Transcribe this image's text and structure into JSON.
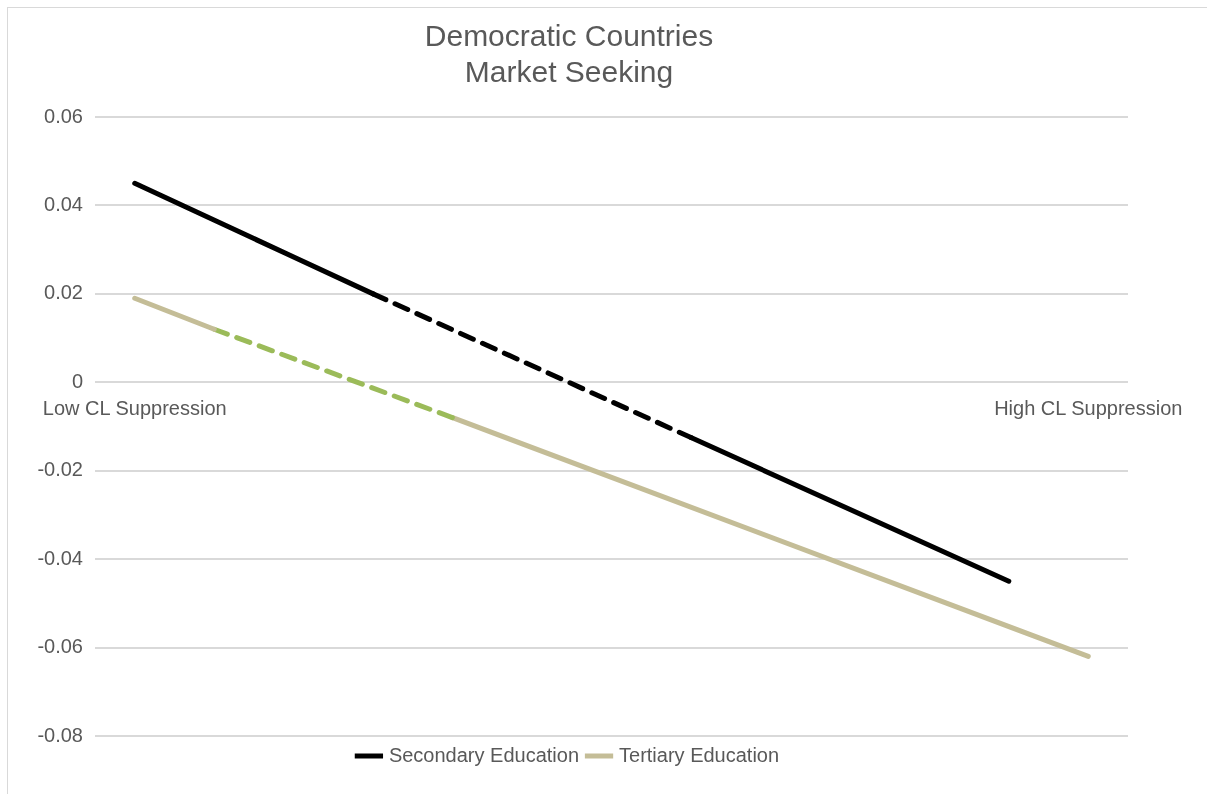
{
  "chart_data": {
    "type": "line",
    "title": "Democratic Countries",
    "subtitle": "Market Seeking",
    "categories": [
      "Low CL Suppression",
      null,
      null,
      null,
      null,
      null,
      null,
      null,
      null,
      null,
      null,
      null,
      "High CL Suppression"
    ],
    "series": [
      {
        "name": "Secondary Education",
        "color": "#000000",
        "values": [
          0.045,
          null,
          null,
          0.02,
          null,
          null,
          null,
          null,
          null,
          null,
          null,
          null,
          null
        ]
      },
      {
        "color": "#000000",
        "line_style": "dashed",
        "values": [
          null,
          null,
          null,
          0.02,
          null,
          null,
          null,
          -0.0125,
          null,
          null,
          null,
          null,
          null
        ]
      },
      {
        "color": "#000000",
        "values": [
          null,
          null,
          null,
          null,
          null,
          null,
          null,
          -0.0125,
          null,
          null,
          null,
          -0.045,
          null
        ]
      },
      {
        "name": "Tertiary Education",
        "color": "#c4bd97",
        "values": [
          0.019,
          0.012,
          null,
          null,
          null,
          null,
          null,
          null,
          null,
          null,
          null,
          null,
          null
        ]
      },
      {
        "color": "#9bbb59",
        "line_style": "dashed",
        "values": [
          null,
          0.012,
          null,
          null,
          -0.008,
          null,
          null,
          null,
          null,
          null,
          null,
          null,
          null
        ]
      },
      {
        "color": "#c4bd97",
        "values": [
          null,
          null,
          null,
          null,
          -0.008,
          null,
          null,
          null,
          null,
          null,
          null,
          null,
          -0.062
        ]
      }
    ],
    "ylim": [
      -0.08,
      0.06
    ],
    "yticks": [
      -0.08,
      -0.06,
      -0.04,
      -0.02,
      0,
      0.02,
      0.04,
      0.06
    ],
    "grid": "y",
    "legend": "bottom",
    "marker": "none",
    "line_style": "solid"
  }
}
